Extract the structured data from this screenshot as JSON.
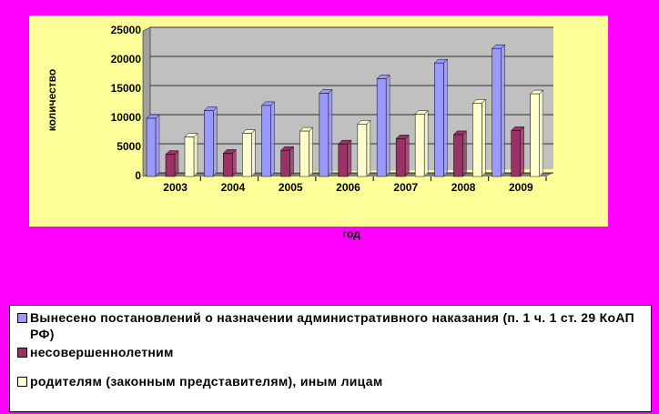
{
  "chart_data": {
    "type": "bar",
    "y_label": "количество",
    "x_label": "год",
    "categories": [
      "2003",
      "2004",
      "2005",
      "2006",
      "2007",
      "2008",
      "2009"
    ],
    "series": [
      {
        "name": "Вынесено постановлений о назначении административного наказания (п. 1 ч. 1 ст. 29 КоАП РФ)",
        "color": "#9999ff",
        "values": [
          10000,
          11300,
          12200,
          14300,
          16800,
          19500,
          22000
        ]
      },
      {
        "name": "несовершеннолетним",
        "color": "#993366",
        "values": [
          3800,
          4000,
          4500,
          5600,
          6500,
          7200,
          7900
        ]
      },
      {
        "name": "родителям (законным представителям), иным лицам",
        "color": "#ffffcc",
        "values": [
          6800,
          7400,
          7800,
          9000,
          10700,
          12600,
          14200
        ]
      }
    ],
    "ylim": [
      0,
      25000
    ],
    "yticks": [
      0,
      5000,
      10000,
      15000,
      20000,
      25000
    ],
    "grid": true
  }
}
